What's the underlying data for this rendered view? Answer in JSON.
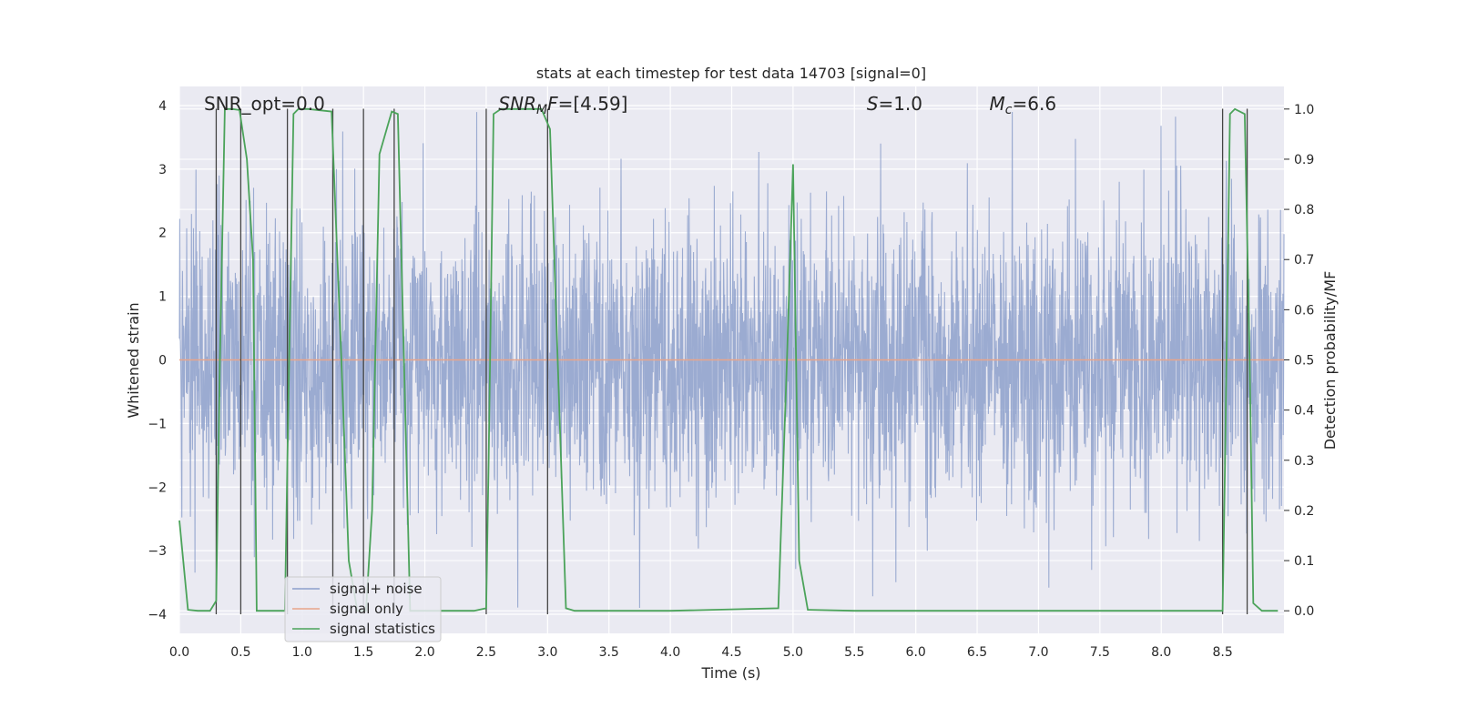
{
  "chart_data": {
    "type": "line",
    "title": "stats at each timestep for test data 14703 [signal=0]",
    "xlabel": "Time (s)",
    "ylabel": "Whitened strain",
    "ylabel_right": "Detection probability/MF",
    "xlim": [
      0.0,
      9.0
    ],
    "ylim": [
      -4.3,
      4.3
    ],
    "ylim_right": [
      -0.045,
      1.045
    ],
    "x_ticks": [
      "0.0",
      "0.5",
      "1.0",
      "1.5",
      "2.0",
      "2.5",
      "3.0",
      "3.5",
      "4.0",
      "4.5",
      "5.0",
      "5.5",
      "6.0",
      "6.5",
      "7.0",
      "7.5",
      "8.0",
      "8.5"
    ],
    "y_ticks_left": [
      "4",
      "3",
      "2",
      "1",
      "0",
      "−1",
      "−2",
      "−3",
      "−4"
    ],
    "y_ticks_right": [
      "1.0",
      "0.9",
      "0.8",
      "0.7",
      "0.6",
      "0.5",
      "0.4",
      "0.3",
      "0.2",
      "0.1",
      "0.0"
    ],
    "grid": true,
    "legend_position": "lower-left",
    "annotations": [
      {
        "x": 0.2,
        "y": 4.0,
        "parts": [
          {
            "t": "SNR_opt=0.0",
            "s": "normal"
          }
        ]
      },
      {
        "x": 2.6,
        "y": 4.0,
        "parts": [
          {
            "t": "SNR",
            "s": "italic"
          },
          {
            "t": "M",
            "s": "italic-sub"
          },
          {
            "t": "F",
            "s": "italic"
          },
          {
            "t": "=[4.59]",
            "s": "normal"
          }
        ]
      },
      {
        "x": 5.6,
        "y": 4.0,
        "parts": [
          {
            "t": "S",
            "s": "italic"
          },
          {
            "t": "=1.0",
            "s": "normal"
          }
        ]
      },
      {
        "x": 6.6,
        "y": 4.0,
        "parts": [
          {
            "t": "M",
            "s": "italic"
          },
          {
            "t": "c",
            "s": "italic-sub"
          },
          {
            "t": "=6.6",
            "s": "normal"
          }
        ]
      }
    ],
    "series": [
      {
        "name": "signal+ noise",
        "color": "#8da0cb",
        "kind": "noise",
        "x_range": [
          0.0,
          9.0
        ],
        "amplitude_envelope": {
          "typical_max": 2.4,
          "peak_max": 3.9,
          "typical_min": -2.3,
          "peak_min": -3.9
        }
      },
      {
        "name": "signal only",
        "color": "#e8a48a",
        "x": [
          0.0,
          9.0
        ],
        "y": [
          0.0,
          0.0
        ]
      },
      {
        "name": "signal statistics",
        "color": "#4ba35a",
        "axis": "right",
        "x": [
          0.0,
          0.07,
          0.15,
          0.25,
          0.3,
          0.33,
          0.37,
          0.43,
          0.49,
          0.55,
          0.6,
          0.63,
          0.7,
          0.86,
          0.88,
          0.93,
          0.97,
          1.05,
          1.24,
          1.32,
          1.38,
          1.45,
          1.52,
          1.57,
          1.63,
          1.73,
          1.78,
          1.83,
          1.88,
          2.1,
          2.4,
          2.5,
          2.52,
          2.56,
          2.62,
          2.72,
          2.95,
          3.02,
          3.15,
          3.22,
          4.0,
          4.88,
          4.95,
          5.0,
          5.05,
          5.12,
          5.5,
          6.5,
          7.5,
          8.5,
          8.52,
          8.56,
          8.6,
          8.68,
          8.72,
          8.75,
          8.82,
          8.95
        ],
        "y": [
          0.18,
          0.002,
          0.0,
          0.0,
          0.02,
          0.5,
          1.0,
          1.0,
          0.998,
          0.9,
          0.7,
          0.0,
          0.0,
          0.0,
          0.3,
          0.99,
          1.0,
          1.0,
          0.995,
          0.5,
          0.1,
          0.0,
          0.0,
          0.2,
          0.91,
          0.995,
          0.99,
          0.5,
          0.0,
          0.0,
          0.0,
          0.005,
          0.3,
          0.99,
          1.0,
          1.0,
          1.0,
          0.96,
          0.005,
          0.0,
          0.0,
          0.005,
          0.5,
          0.89,
          0.1,
          0.002,
          0.0,
          0.0,
          0.0,
          0.0,
          0.3,
          0.99,
          1.0,
          0.99,
          0.5,
          0.015,
          0.0,
          0.0
        ]
      }
    ],
    "vertical_lines": {
      "color": "#444444",
      "x": [
        0.3,
        0.5,
        0.88,
        1.25,
        1.5,
        1.75,
        2.5,
        3.0,
        8.5,
        8.7
      ],
      "y_top": 3.95,
      "y_bottom": -4.0
    }
  }
}
